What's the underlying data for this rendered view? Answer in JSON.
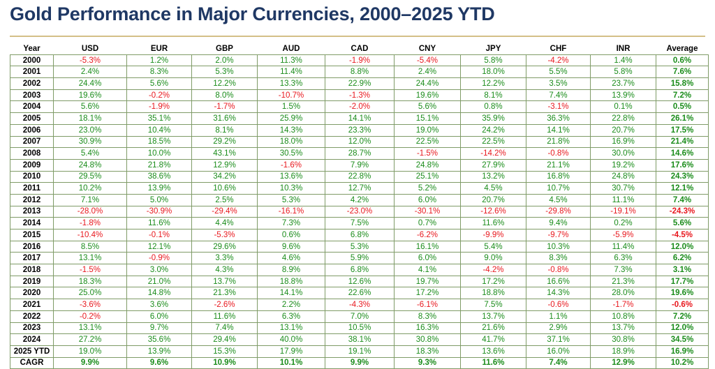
{
  "title": "Gold Performance in Major Currencies, 2000–2025 YTD",
  "colors": {
    "positive": "#1a8c1a",
    "negative": "#e8181e",
    "title": "#1f3864",
    "rule": "#d4bf87"
  },
  "chart_data": {
    "type": "table",
    "title": "Gold Performance in Major Currencies, 2000–2025 YTD",
    "columns": [
      "Year",
      "USD",
      "EUR",
      "GBP",
      "AUD",
      "CAD",
      "CNY",
      "JPY",
      "CHF",
      "INR",
      "Average"
    ],
    "rows": [
      [
        "2000",
        "-5.3%",
        "1.2%",
        "2.0%",
        "11.3%",
        "-1.9%",
        "-5.4%",
        "5.8%",
        "-4.2%",
        "1.4%",
        "0.6%"
      ],
      [
        "2001",
        "2.4%",
        "8.3%",
        "5.3%",
        "11.4%",
        "8.8%",
        "2.4%",
        "18.0%",
        "5.5%",
        "5.8%",
        "7.6%"
      ],
      [
        "2002",
        "24.4%",
        "5.6%",
        "12.2%",
        "13.3%",
        "22.9%",
        "24.4%",
        "12.2%",
        "3.5%",
        "23.7%",
        "15.8%"
      ],
      [
        "2003",
        "19.6%",
        "-0.2%",
        "8.0%",
        "-10.7%",
        "-1.3%",
        "19.6%",
        "8.1%",
        "7.4%",
        "13.9%",
        "7.2%"
      ],
      [
        "2004",
        "5.6%",
        "-1.9%",
        "-1.7%",
        "1.5%",
        "-2.0%",
        "5.6%",
        "0.8%",
        "-3.1%",
        "0.1%",
        "0.5%"
      ],
      [
        "2005",
        "18.1%",
        "35.1%",
        "31.6%",
        "25.9%",
        "14.1%",
        "15.1%",
        "35.9%",
        "36.3%",
        "22.8%",
        "26.1%"
      ],
      [
        "2006",
        "23.0%",
        "10.4%",
        "8.1%",
        "14.3%",
        "23.3%",
        "19.0%",
        "24.2%",
        "14.1%",
        "20.7%",
        "17.5%"
      ],
      [
        "2007",
        "30.9%",
        "18.5%",
        "29.2%",
        "18.0%",
        "12.0%",
        "22.5%",
        "22.5%",
        "21.8%",
        "16.9%",
        "21.4%"
      ],
      [
        "2008",
        "5.4%",
        "10.0%",
        "43.1%",
        "30.5%",
        "28.7%",
        "-1.5%",
        "-14.2%",
        "-0.8%",
        "30.0%",
        "14.6%"
      ],
      [
        "2009",
        "24.8%",
        "21.8%",
        "12.9%",
        "-1.6%",
        "7.9%",
        "24.8%",
        "27.9%",
        "21.1%",
        "19.2%",
        "17.6%"
      ],
      [
        "2010",
        "29.5%",
        "38.6%",
        "34.2%",
        "13.6%",
        "22.8%",
        "25.1%",
        "13.2%",
        "16.8%",
        "24.8%",
        "24.3%"
      ],
      [
        "2011",
        "10.2%",
        "13.9%",
        "10.6%",
        "10.3%",
        "12.7%",
        "5.2%",
        "4.5%",
        "10.7%",
        "30.7%",
        "12.1%"
      ],
      [
        "2012",
        "7.1%",
        "5.0%",
        "2.5%",
        "5.3%",
        "4.2%",
        "6.0%",
        "20.7%",
        "4.5%",
        "11.1%",
        "7.4%"
      ],
      [
        "2013",
        "-28.0%",
        "-30.9%",
        "-29.4%",
        "-16.1%",
        "-23.0%",
        "-30.1%",
        "-12.6%",
        "-29.8%",
        "-19.1%",
        "-24.3%"
      ],
      [
        "2014",
        "-1.8%",
        "11.6%",
        "4.4%",
        "7.3%",
        "7.5%",
        "0.7%",
        "11.6%",
        "9.4%",
        "0.2%",
        "5.6%"
      ],
      [
        "2015",
        "-10.4%",
        "-0.1%",
        "-5.3%",
        "0.6%",
        "6.8%",
        "-6.2%",
        "-9.9%",
        "-9.7%",
        "-5.9%",
        "-4.5%"
      ],
      [
        "2016",
        "8.5%",
        "12.1%",
        "29.6%",
        "9.6%",
        "5.3%",
        "16.1%",
        "5.4%",
        "10.3%",
        "11.4%",
        "12.0%"
      ],
      [
        "2017",
        "13.1%",
        "-0.9%",
        "3.3%",
        "4.6%",
        "5.9%",
        "6.0%",
        "9.0%",
        "8.3%",
        "6.3%",
        "6.2%"
      ],
      [
        "2018",
        "-1.5%",
        "3.0%",
        "4.3%",
        "8.9%",
        "6.8%",
        "4.1%",
        "-4.2%",
        "-0.8%",
        "7.3%",
        "3.1%"
      ],
      [
        "2019",
        "18.3%",
        "21.0%",
        "13.7%",
        "18.8%",
        "12.6%",
        "19.7%",
        "17.2%",
        "16.6%",
        "21.3%",
        "17.7%"
      ],
      [
        "2020",
        "25.0%",
        "14.8%",
        "21.3%",
        "14.1%",
        "22.6%",
        "17.2%",
        "18.8%",
        "14.3%",
        "28.0%",
        "19.6%"
      ],
      [
        "2021",
        "-3.6%",
        "3.6%",
        "-2.6%",
        "2.2%",
        "-4.3%",
        "-6.1%",
        "7.5%",
        "-0.6%",
        "-1.7%",
        "-0.6%"
      ],
      [
        "2022",
        "-0.2%",
        "6.0%",
        "11.6%",
        "6.3%",
        "7.0%",
        "8.3%",
        "13.7%",
        "1.1%",
        "10.8%",
        "7.2%"
      ],
      [
        "2023",
        "13.1%",
        "9.7%",
        "7.4%",
        "13.1%",
        "10.5%",
        "16.3%",
        "21.6%",
        "2.9%",
        "13.7%",
        "12.0%"
      ],
      [
        "2024",
        "27.2%",
        "35.6%",
        "29.4%",
        "40.0%",
        "38.1%",
        "30.8%",
        "41.7%",
        "37.1%",
        "30.8%",
        "34.5%"
      ],
      [
        "2025 YTD",
        "19.0%",
        "13.9%",
        "15.3%",
        "17.9%",
        "19.1%",
        "18.3%",
        "13.6%",
        "16.0%",
        "18.9%",
        "16.9%"
      ],
      [
        "CAGR",
        "9.9%",
        "9.6%",
        "10.9%",
        "10.1%",
        "9.9%",
        "9.3%",
        "11.6%",
        "7.4%",
        "12.9%",
        "10.2%"
      ]
    ]
  }
}
